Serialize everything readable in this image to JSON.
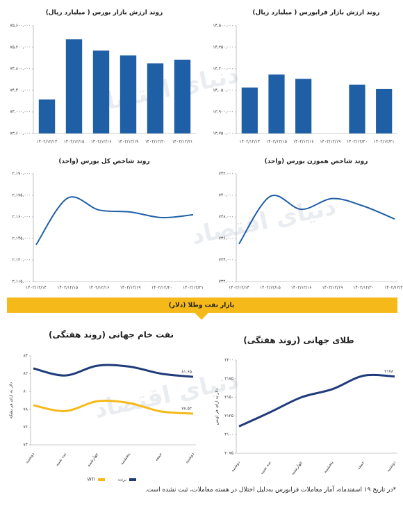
{
  "banner": "بازار نفت وطلا (دلار)",
  "watermark": "دنیای اقتصاد",
  "footnote": "*در تاریخ ۱۹ اسفندماه، آمار معاملات فرابورس به‌دلیل اختلال در هسته معاملات، ثبت نشده است.",
  "chart_data": [
    {
      "type": "bar",
      "title": "روند ارزش بازار بورس ( میلیارد ریال)",
      "categories": [
        "۱۴۰۲/۱۲/۱۴",
        "۱۴۰۲/۱۲/۱۵",
        "۱۴۰۲/۱۲/۱۶",
        "۱۴۰۲/۱۲/۱۹",
        "۱۴۰۲/۱۲/۲۰",
        "۱۴۰۲/۱۲/۲۱"
      ],
      "values": [
        74230000,
        75350000,
        75140000,
        75050000,
        74900000,
        74970000
      ],
      "color": "#1f5fa6",
      "ylim": [
        73600000,
        75600000
      ],
      "yticks": [
        {
          "value": 73600000,
          "label": "۷۳,۶۰۰,۰۰۰"
        },
        {
          "value": 74000000,
          "label": "۷۴,۰۰۰,۰۰۰"
        },
        {
          "value": 74400000,
          "label": "۷۴,۴۰۰,۰۰۰"
        },
        {
          "value": 74800000,
          "label": "۷۴,۸۰۰,۰۰۰"
        },
        {
          "value": 75200000,
          "label": "۷۵,۲۰۰,۰۰۰"
        },
        {
          "value": 75600000,
          "label": "۷۵,۶۰۰,۰۰۰"
        }
      ]
    },
    {
      "type": "bar",
      "title": "روند ارزش بازار فرابورس ( میلیارد ریال)",
      "categories": [
        "۱۴۰۲/۱۲/۱۴",
        "۱۴۰۲/۱۲/۱۵",
        "۱۴۰۲/۱۲/۱۶",
        "۱۴۰۲/۱۲/۱۹",
        "۱۴۰۲/۱۲/۲۰",
        "۱۴۰۲/۱۲/۲۱"
      ],
      "values": [
        14070000,
        14160000,
        14130000,
        null,
        14090000,
        14060000
      ],
      "color": "#1f5fa6",
      "ylim": [
        13750000,
        14500000
      ],
      "yticks": [
        {
          "value": 13750000,
          "label": "۱۳,۷۵۰,۰۰۰"
        },
        {
          "value": 13900000,
          "label": "۱۳,۹۰۰,۰۰۰"
        },
        {
          "value": 14050000,
          "label": "۱۴,۰۵۰,۰۰۰"
        },
        {
          "value": 14200000,
          "label": "۱۴,۲۰۰,۰۰۰"
        },
        {
          "value": 14350000,
          "label": "۱۴,۳۵۰,۰۰۰"
        },
        {
          "value": 14500000,
          "label": "۱۴,۵۰۰,۰۰۰"
        }
      ]
    },
    {
      "type": "line",
      "title": "روند شاخص کل بورس (واحد)",
      "categories": [
        "۱۴۰۲/۱۲/۱۴",
        "۱۴۰۲/۱۲/۱۵",
        "۱۴۰۲/۱۲/۱۶",
        "۱۴۰۲/۱۲/۱۹",
        "۱۴۰۲/۱۲/۲۰",
        "۱۴۰۲/۱۲/۲۱"
      ],
      "values": [
        2140600,
        2173000,
        2164800,
        2163400,
        2159500,
        2161500
      ],
      "color": "#1f5fa6",
      "ylim": [
        2115000,
        2190000
      ],
      "yticks": [
        {
          "value": 2115000,
          "label": "۲,۱۱۵,۰۰۰"
        },
        {
          "value": 2130000,
          "label": "۲,۱۳۰,۰۰۰"
        },
        {
          "value": 2145000,
          "label": "۲,۱۴۵,۰۰۰"
        },
        {
          "value": 2160000,
          "label": "۲,۱۶۰,۰۰۰"
        },
        {
          "value": 2175000,
          "label": "۲,۱۷۵,۰۰۰"
        },
        {
          "value": 2190000,
          "label": "۲,۱۹۰,۰۰۰"
        }
      ]
    },
    {
      "type": "line",
      "title": "روند شاخص هموزن بورس (واحد)",
      "categories": [
        "۱۴۰۲/۱۲/۱۴",
        "۱۴۰۲/۱۲/۱۵",
        "۱۴۰۲/۱۲/۱۶",
        "۱۴۰۲/۱۲/۱۹",
        "۱۴۰۲/۱۲/۲۰",
        "۱۴۰۲/۱۲/۲۱"
      ],
      "values": [
        735500,
        739900,
        738700,
        739700,
        739000,
        737800
      ],
      "color": "#1f5fa6",
      "ylim": [
        732000,
        742000
      ],
      "yticks": [
        {
          "value": 732000,
          "label": "۷۳۲,۰۰۰"
        },
        {
          "value": 734000,
          "label": "۷۳۴,۰۰۰"
        },
        {
          "value": 736000,
          "label": "۷۳۶,۰۰۰"
        },
        {
          "value": 738000,
          "label": "۷۳۸,۰۰۰"
        },
        {
          "value": 740000,
          "label": "۷۴۰,۰۰۰"
        },
        {
          "value": 742000,
          "label": "۷۴۲,۰۰۰"
        }
      ]
    },
    {
      "type": "line",
      "title": "نفت خام جهانی (روند هفتگی)",
      "ylabel": "دلار به ازای هر بشکه",
      "categories": [
        "دوشنبه",
        "سه شنبه",
        "چهارشنبه",
        "پنجشنبه",
        "جمعه",
        "دوشنبه"
      ],
      "series": [
        {
          "name": "برنت",
          "color": "#1f3b7a",
          "values": [
            82.6,
            81.8,
            82.9,
            82.8,
            82.0,
            81.65
          ],
          "value_labels": [
            null,
            null,
            null,
            null,
            null,
            "۸۱.۶۵"
          ]
        },
        {
          "name": "WTI",
          "color": "#f5b91a",
          "values": [
            78.45,
            77.8,
            78.9,
            78.7,
            77.75,
            77.52
          ],
          "value_labels": [
            null,
            null,
            null,
            null,
            null,
            "۷۷.۵۲"
          ]
        }
      ],
      "ylim": [
        74,
        84
      ],
      "yticks": [
        {
          "value": 74,
          "label": "۷۴"
        },
        {
          "value": 76,
          "label": "۷۶"
        },
        {
          "value": 78,
          "label": "۷۸"
        },
        {
          "value": 80,
          "label": "۸۰"
        },
        {
          "value": 82,
          "label": "۸۲"
        },
        {
          "value": 84,
          "label": "۸۴"
        }
      ]
    },
    {
      "type": "line",
      "title": "طلای جهانی (روند هفتگی)",
      "ylabel": "دلار به ازای هر اونس",
      "categories": [
        "دوشنبه",
        "سه شنبه",
        "چهارشنبه",
        "پنجشنبه",
        "جمعه",
        "دوشنبه"
      ],
      "values": [
        2111,
        2130,
        2150,
        2161,
        2179,
        2178
      ],
      "value_labels": [
        null,
        null,
        null,
        null,
        null,
        "۲۱۷۸"
      ],
      "color": "#1f3b7a",
      "ylim": [
        2075,
        2200
      ],
      "yticks": [
        {
          "value": 2075,
          "label": "۲۰۷۵"
        },
        {
          "value": 2100,
          "label": "۲۱۰۰"
        },
        {
          "value": 2125,
          "label": "۲۱۲۵"
        },
        {
          "value": 2150,
          "label": "۲۱۵۰"
        },
        {
          "value": 2175,
          "label": "۲۱۷۵"
        },
        {
          "value": 2200,
          "label": "۲۲۰۰"
        }
      ]
    }
  ]
}
